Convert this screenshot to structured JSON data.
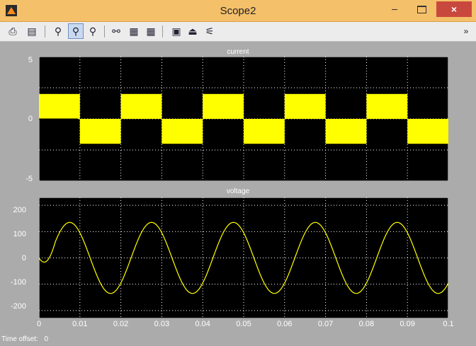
{
  "window": {
    "title": "Scope2",
    "close_label": "×",
    "min_label": "–"
  },
  "toolbar": {
    "icons": [
      "printer-icon",
      "parameters-icon",
      "zoom-icon",
      "zoom-x-icon",
      "zoom-y-icon",
      "autoscale-icon",
      "save-axes-icon",
      "restore-axes-icon",
      "floating-scope-icon",
      "lock-icon",
      "signal-selection-icon"
    ],
    "overflow_label": "»"
  },
  "chart_data": [
    {
      "type": "line",
      "title": "current",
      "xlim": [
        0,
        0.1
      ],
      "ylim": [
        -5,
        5
      ],
      "yticks": [
        "5",
        "0",
        "-5"
      ],
      "series": [
        {
          "color": "#ffff00",
          "kind": "square-wave",
          "amplitude": 2,
          "period": 0.02,
          "x_start": 0,
          "x_end": 0.1
        }
      ]
    },
    {
      "type": "line",
      "title": "voltage",
      "xlim": [
        0,
        0.1
      ],
      "ylim": [
        -230,
        230
      ],
      "yticks": [
        "200",
        "100",
        "0",
        "-100",
        "-200"
      ],
      "xticks": [
        "0",
        "0.01",
        "0.02",
        "0.03",
        "0.04",
        "0.05",
        "0.06",
        "0.07",
        "0.08",
        "0.09",
        "0.1"
      ],
      "series": [
        {
          "color": "#ffff00",
          "kind": "sine",
          "amplitude": 135,
          "period": 0.02,
          "x_start": 0,
          "x_end": 0.1
        }
      ]
    }
  ],
  "status": {
    "label": "Time offset:",
    "value": "0"
  }
}
